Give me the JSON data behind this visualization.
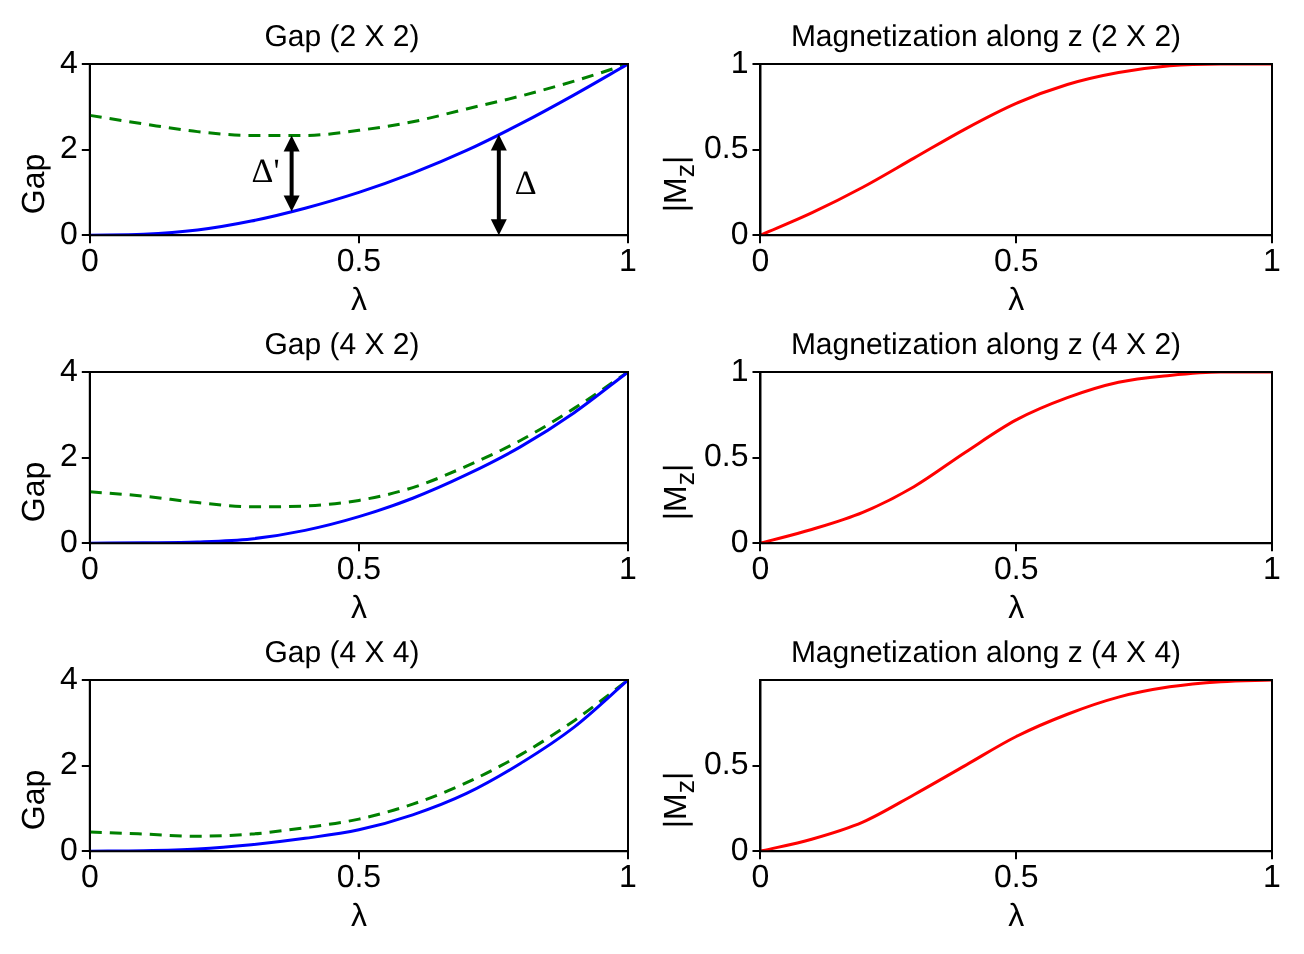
{
  "chart_data": [
    {
      "type": "line",
      "title": "Gap (2 X 2)",
      "xlabel": "λ",
      "ylabel": "Gap",
      "xlim": [
        0,
        1
      ],
      "xticks": [
        0,
        0.5,
        1
      ],
      "ylim": [
        0,
        4
      ],
      "yticks": [
        0,
        2,
        4
      ],
      "grid": false,
      "legend": false,
      "series": [
        {
          "color": "#0000ff",
          "line_style": "solid",
          "x": [
            0,
            0.1,
            0.2,
            0.3,
            0.4,
            0.5,
            0.6,
            0.7,
            0.8,
            0.9,
            1
          ],
          "values": [
            0,
            0.02,
            0.12,
            0.33,
            0.63,
            1.0,
            1.45,
            1.98,
            2.6,
            3.28,
            4
          ]
        },
        {
          "color": "#008000",
          "line_style": "dashed",
          "x": [
            0,
            0.1,
            0.2,
            0.3,
            0.4,
            0.5,
            0.6,
            0.7,
            0.8,
            0.9,
            1
          ],
          "values": [
            2.8,
            2.6,
            2.42,
            2.33,
            2.33,
            2.45,
            2.65,
            2.95,
            3.25,
            3.6,
            4
          ]
        }
      ],
      "annotations": [
        {
          "text": "Δ'",
          "x": 0.375,
          "y": 2.33
        },
        {
          "text": "Δ",
          "x": 0.76,
          "y": 2.35
        }
      ]
    },
    {
      "type": "line",
      "title": "Magnetization along z (2 X 2)",
      "xlabel": "λ",
      "ylabel": "|M$_{z}$|",
      "xlim": [
        0,
        1
      ],
      "xticks": [
        0,
        0.5,
        1
      ],
      "ylim": [
        0,
        1
      ],
      "yticks": [
        0,
        0.5,
        1
      ],
      "grid": false,
      "legend": false,
      "series": [
        {
          "color": "#ff0000",
          "line_style": "solid",
          "x": [
            0,
            0.1,
            0.2,
            0.3,
            0.4,
            0.5,
            0.6,
            0.7,
            0.8,
            0.9,
            1
          ],
          "values": [
            0,
            0.13,
            0.28,
            0.45,
            0.62,
            0.77,
            0.88,
            0.95,
            0.99,
            1,
            1
          ]
        }
      ]
    },
    {
      "type": "line",
      "title": "Gap (4 X 2)",
      "xlabel": "λ",
      "ylabel": "Gap",
      "xlim": [
        0,
        1
      ],
      "xticks": [
        0,
        0.5,
        1
      ],
      "ylim": [
        0,
        4
      ],
      "yticks": [
        0,
        2,
        4
      ],
      "grid": false,
      "legend": false,
      "series": [
        {
          "color": "#0000ff",
          "line_style": "solid",
          "x": [
            0,
            0.1,
            0.2,
            0.3,
            0.4,
            0.5,
            0.6,
            0.7,
            0.8,
            0.9,
            1
          ],
          "values": [
            0,
            0.01,
            0.03,
            0.1,
            0.3,
            0.62,
            1.05,
            1.6,
            2.25,
            3.05,
            4
          ]
        },
        {
          "color": "#008000",
          "line_style": "dashed",
          "x": [
            0,
            0.1,
            0.2,
            0.3,
            0.4,
            0.5,
            0.6,
            0.7,
            0.8,
            0.9,
            1
          ],
          "values": [
            1.2,
            1.1,
            0.95,
            0.85,
            0.87,
            1.0,
            1.3,
            1.8,
            2.4,
            3.15,
            4
          ]
        }
      ]
    },
    {
      "type": "line",
      "title": "Magnetization along z (4 X 2)",
      "xlabel": "λ",
      "ylabel": "|M$_{z}$|",
      "xlim": [
        0,
        1
      ],
      "xticks": [
        0,
        0.5,
        1
      ],
      "ylim": [
        0,
        1
      ],
      "yticks": [
        0,
        0.5,
        1
      ],
      "grid": false,
      "legend": false,
      "series": [
        {
          "color": "#ff0000",
          "line_style": "solid",
          "x": [
            0,
            0.1,
            0.2,
            0.3,
            0.4,
            0.5,
            0.6,
            0.7,
            0.8,
            0.9,
            1
          ],
          "values": [
            0,
            0.08,
            0.18,
            0.33,
            0.53,
            0.72,
            0.85,
            0.94,
            0.98,
            1,
            1
          ]
        }
      ]
    },
    {
      "type": "line",
      "title": "Gap (4 X 4)",
      "xlabel": "λ",
      "ylabel": "Gap",
      "xlim": [
        0,
        1
      ],
      "xticks": [
        0,
        0.5,
        1
      ],
      "ylim": [
        0,
        4
      ],
      "yticks": [
        0,
        2,
        4
      ],
      "grid": false,
      "legend": false,
      "series": [
        {
          "color": "#0000ff",
          "line_style": "solid",
          "x": [
            0,
            0.1,
            0.2,
            0.3,
            0.4,
            0.5,
            0.6,
            0.7,
            0.8,
            0.9,
            1
          ],
          "values": [
            0,
            0.01,
            0.05,
            0.15,
            0.3,
            0.5,
            0.85,
            1.35,
            2.05,
            2.9,
            4
          ]
        },
        {
          "color": "#008000",
          "line_style": "dashed",
          "x": [
            0,
            0.1,
            0.2,
            0.3,
            0.4,
            0.5,
            0.6,
            0.7,
            0.8,
            0.9,
            1
          ],
          "values": [
            0.45,
            0.4,
            0.35,
            0.4,
            0.55,
            0.75,
            1.1,
            1.6,
            2.25,
            3.05,
            4
          ]
        }
      ]
    },
    {
      "type": "line",
      "title": "Magnetization along z (4 X 4)",
      "xlabel": "λ",
      "ylabel": "|M$_{z}$|",
      "xlim": [
        0,
        1
      ],
      "xticks": [
        0,
        0.5,
        1
      ],
      "ylim": [
        0,
        1
      ],
      "yticks": [
        0,
        0.5
      ],
      "grid": false,
      "legend": false,
      "series": [
        {
          "color": "#ff0000",
          "line_style": "solid",
          "x": [
            0,
            0.1,
            0.2,
            0.3,
            0.4,
            0.5,
            0.6,
            0.7,
            0.8,
            0.9,
            1
          ],
          "values": [
            0,
            0.07,
            0.17,
            0.33,
            0.5,
            0.67,
            0.8,
            0.9,
            0.96,
            0.99,
            1
          ]
        }
      ]
    }
  ]
}
